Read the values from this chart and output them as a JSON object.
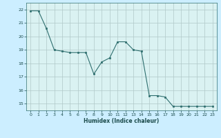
{
  "x": [
    0,
    1,
    2,
    3,
    4,
    5,
    6,
    7,
    8,
    9,
    10,
    11,
    12,
    13,
    14,
    15,
    16,
    17,
    18,
    19,
    20,
    21,
    22,
    23
  ],
  "y": [
    21.9,
    21.9,
    20.6,
    19.0,
    18.9,
    18.8,
    18.8,
    18.8,
    17.2,
    18.1,
    18.4,
    19.6,
    19.6,
    19.0,
    18.9,
    15.6,
    15.6,
    15.5,
    14.8,
    14.8,
    14.8,
    14.8,
    14.8,
    14.8
  ],
  "xlabel": "Humidex (Indice chaleur)",
  "ylim": [
    14.5,
    22.5
  ],
  "xlim": [
    -0.5,
    23.5
  ],
  "yticks": [
    15,
    16,
    17,
    18,
    19,
    20,
    21,
    22
  ],
  "xticks": [
    0,
    1,
    2,
    3,
    4,
    5,
    6,
    7,
    8,
    9,
    10,
    11,
    12,
    13,
    14,
    15,
    16,
    17,
    18,
    19,
    20,
    21,
    22,
    23
  ],
  "line_color": "#2e6e6e",
  "marker": "s",
  "marker_size": 2,
  "bg_color": "#cceeff",
  "grid_color": "#b0c8c8",
  "plot_bg": "#daf2f2",
  "xlabel_color": "#1a4a4a",
  "tick_color": "#1a4a4a"
}
